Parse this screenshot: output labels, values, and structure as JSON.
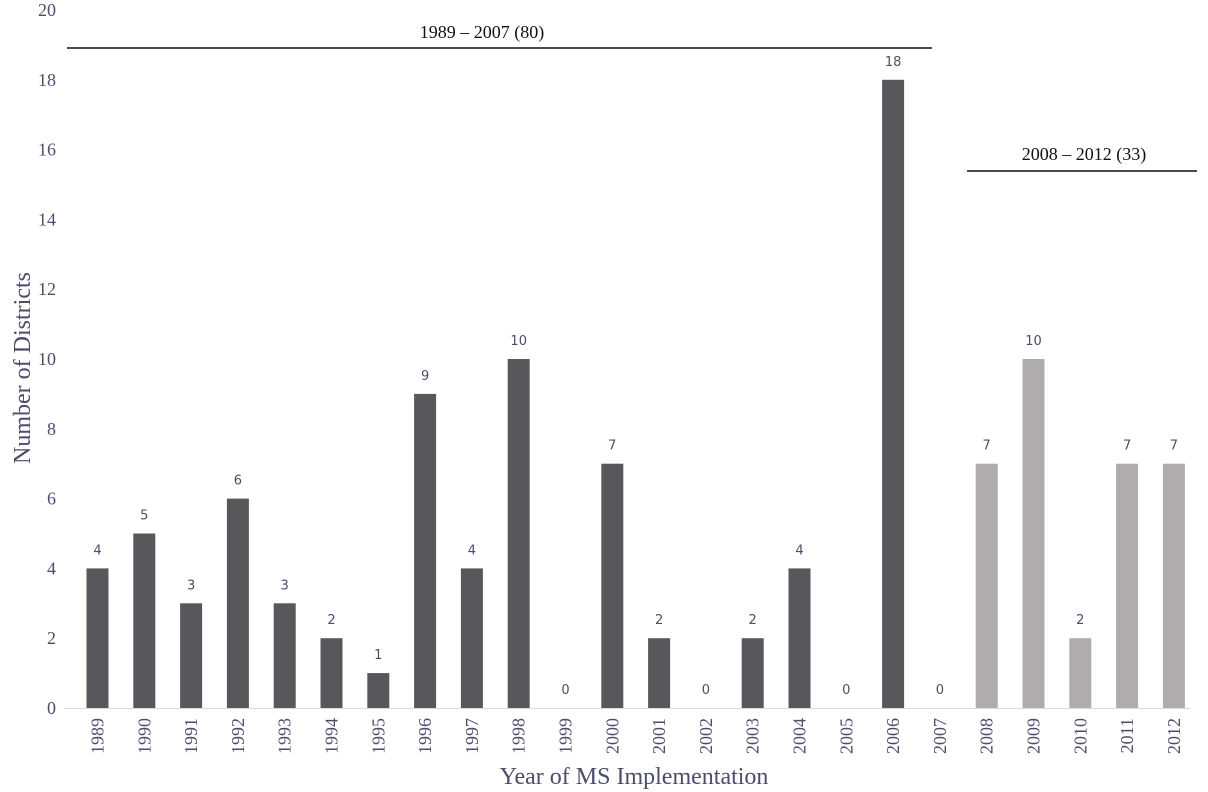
{
  "chart_data": {
    "type": "bar",
    "categories": [
      "1989",
      "1990",
      "1991",
      "1992",
      "1993",
      "1994",
      "1995",
      "1996",
      "1997",
      "1998",
      "1999",
      "2000",
      "2001",
      "2002",
      "2003",
      "2004",
      "2005",
      "2006",
      "2007",
      "2008",
      "2009",
      "2010",
      "2011",
      "2012"
    ],
    "values": [
      4,
      5,
      3,
      6,
      3,
      2,
      1,
      9,
      4,
      10,
      0,
      7,
      2,
      0,
      2,
      4,
      0,
      18,
      0,
      7,
      10,
      2,
      7,
      7
    ],
    "xlabel": "Year of MS Implementation",
    "ylabel": "Number of  Districts",
    "ylim": [
      0,
      20
    ],
    "yticks": [
      0,
      2,
      4,
      6,
      8,
      10,
      12,
      14,
      16,
      18,
      20
    ],
    "grid": false,
    "data_labels": true,
    "periods": [
      {
        "label": "1989 – 2007 (80)",
        "start": "1989",
        "end": "2007",
        "color": "#58575b"
      },
      {
        "label": "2008 – 2012 (33)",
        "start": "2008",
        "end": "2012",
        "color": "#b0abad"
      }
    ]
  }
}
